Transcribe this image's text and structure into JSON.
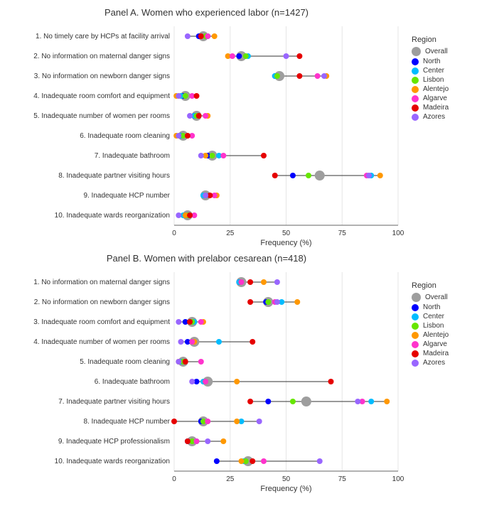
{
  "global": {
    "x_axis_label": "Frequency (%)",
    "x_ticks": [
      0,
      25,
      50,
      75,
      100
    ],
    "xlim": [
      0,
      100
    ],
    "background_color": "#ffffff",
    "grid_color": "#e5e5e5",
    "marker_radius": 4,
    "overall_marker_radius": 7,
    "y_label_fontsize": 10,
    "x_label_fontsize": 10,
    "title_fontsize": 13
  },
  "legend": {
    "title": "Region",
    "items": [
      {
        "label": "Overall",
        "color": "#9e9e9e",
        "overall": true
      },
      {
        "label": "North",
        "color": "#0000ff"
      },
      {
        "label": "Center",
        "color": "#00bcff"
      },
      {
        "label": "Lisbon",
        "color": "#66e600"
      },
      {
        "label": "Alentejo",
        "color": "#ff9800"
      },
      {
        "label": "Algarve",
        "color": "#ff33cc"
      },
      {
        "label": "Madeira",
        "color": "#e60000"
      },
      {
        "label": "Azores",
        "color": "#9966ff"
      }
    ]
  },
  "panels": [
    {
      "title": "Panel A. Women who experienced labor (n=1427)",
      "rows": [
        {
          "label": "1. No timely care by HCPs at facility arrival",
          "points": {
            "Overall": 13,
            "North": 11,
            "Center": 15,
            "Lisbon": 14,
            "Alentejo": 18,
            "Algarve": 15,
            "Madeira": 12,
            "Azores": 6
          }
        },
        {
          "label": "2. No information on maternal danger signs",
          "points": {
            "Overall": 30,
            "North": 29,
            "Center": 33,
            "Lisbon": 32,
            "Alentejo": 24,
            "Algarve": 26,
            "Madeira": 56,
            "Azores": 50
          }
        },
        {
          "label": "3. No information on newborn danger signs",
          "points": {
            "Overall": 47,
            "North": 45,
            "Center": 45,
            "Lisbon": 46,
            "Alentejo": 68,
            "Algarve": 64,
            "Madeira": 56,
            "Azores": 67
          }
        },
        {
          "label": "4. Inadequate room comfort and equipment",
          "points": {
            "Overall": 5,
            "North": 4,
            "Center": 3,
            "Lisbon": 5,
            "Alentejo": 1,
            "Algarve": 8,
            "Madeira": 10,
            "Azores": 2
          }
        },
        {
          "label": "5. Inadequate number of women per rooms",
          "points": {
            "Overall": 10,
            "North": 9,
            "Center": 9,
            "Lisbon": 10,
            "Alentejo": 15,
            "Algarve": 14,
            "Madeira": 11,
            "Azores": 7
          }
        },
        {
          "label": "6. Inadequate room cleaning",
          "points": {
            "Overall": 4,
            "North": 3,
            "Center": 3,
            "Lisbon": 4,
            "Alentejo": 1,
            "Algarve": 8,
            "Madeira": 6,
            "Azores": 2
          }
        },
        {
          "label": "7. Inadequate bathroom",
          "points": {
            "Overall": 17,
            "North": 15,
            "Center": 20,
            "Lisbon": 17,
            "Alentejo": 14,
            "Algarve": 22,
            "Madeira": 40,
            "Azores": 12
          }
        },
        {
          "label": "8. Inadequate partner visiting hours",
          "points": {
            "Overall": 65,
            "North": 53,
            "Center": 88,
            "Lisbon": 60,
            "Alentejo": 92,
            "Algarve": 86,
            "Madeira": 45,
            "Azores": 87
          }
        },
        {
          "label": "9. Inadequate HCP number",
          "points": {
            "Overall": 14,
            "North": 14,
            "Center": 13,
            "Lisbon": 14,
            "Alentejo": 19,
            "Algarve": 18,
            "Madeira": 16,
            "Azores": 14
          }
        },
        {
          "label": "10. Inadequate wards reorganization",
          "points": {
            "Overall": 6,
            "North": 5,
            "Center": 4,
            "Lisbon": 6,
            "Alentejo": 5,
            "Algarve": 9,
            "Madeira": 7,
            "Azores": 2
          }
        }
      ]
    },
    {
      "title": "Panel B. Women with prelabor cesarean (n=418)",
      "rows": [
        {
          "label": "1. No information on maternal danger signs",
          "points": {
            "Overall": 30,
            "North": 29,
            "Center": 29,
            "Lisbon": 30,
            "Alentejo": 40,
            "Algarve": 30,
            "Madeira": 34,
            "Azores": 46
          }
        },
        {
          "label": "2. No information on newborn danger signs",
          "points": {
            "Overall": 42,
            "North": 41,
            "Center": 48,
            "Lisbon": 42,
            "Alentejo": 55,
            "Algarve": 45,
            "Madeira": 34,
            "Azores": 46
          }
        },
        {
          "label": "3. Inadequate room comfort and equipment",
          "points": {
            "Overall": 8,
            "North": 5,
            "Center": 9,
            "Lisbon": 8,
            "Alentejo": 13,
            "Algarve": 12,
            "Madeira": 7,
            "Azores": 2
          }
        },
        {
          "label": "4. Inadequate number of women per rooms",
          "points": {
            "Overall": 9,
            "North": 6,
            "Center": 20,
            "Lisbon": 8,
            "Alentejo": 9,
            "Algarve": 8,
            "Madeira": 35,
            "Azores": 3
          }
        },
        {
          "label": "5. Inadequate room cleaning",
          "points": {
            "Overall": 4,
            "North": 3,
            "Center": 3,
            "Lisbon": 4,
            "Alentejo": 2,
            "Algarve": 12,
            "Madeira": 5,
            "Azores": 2
          }
        },
        {
          "label": "6. Inadequate bathroom",
          "points": {
            "Overall": 15,
            "North": 10,
            "Center": 13,
            "Lisbon": 14,
            "Alentejo": 28,
            "Algarve": 14,
            "Madeira": 70,
            "Azores": 8
          }
        },
        {
          "label": "7. Inadequate partner visiting hours",
          "points": {
            "Overall": 59,
            "North": 42,
            "Center": 88,
            "Lisbon": 53,
            "Alentejo": 95,
            "Algarve": 84,
            "Madeira": 34,
            "Azores": 82
          }
        },
        {
          "label": "8. Inadequate HCP number",
          "points": {
            "Overall": 13,
            "North": 12,
            "Center": 30,
            "Lisbon": 13,
            "Alentejo": 28,
            "Algarve": 15,
            "Madeira": 0,
            "Azores": 38
          }
        },
        {
          "label": "9. Inadequate HCP professionalism",
          "points": {
            "Overall": 8,
            "North": 6,
            "Center": 10,
            "Lisbon": 8,
            "Alentejo": 22,
            "Algarve": 10,
            "Madeira": 6,
            "Azores": 15
          }
        },
        {
          "label": "10. Inadequate wards reorganization",
          "points": {
            "Overall": 33,
            "North": 19,
            "Center": 31,
            "Lisbon": 32,
            "Alentejo": 30,
            "Algarve": 40,
            "Madeira": 35,
            "Azores": 65
          }
        }
      ]
    }
  ]
}
